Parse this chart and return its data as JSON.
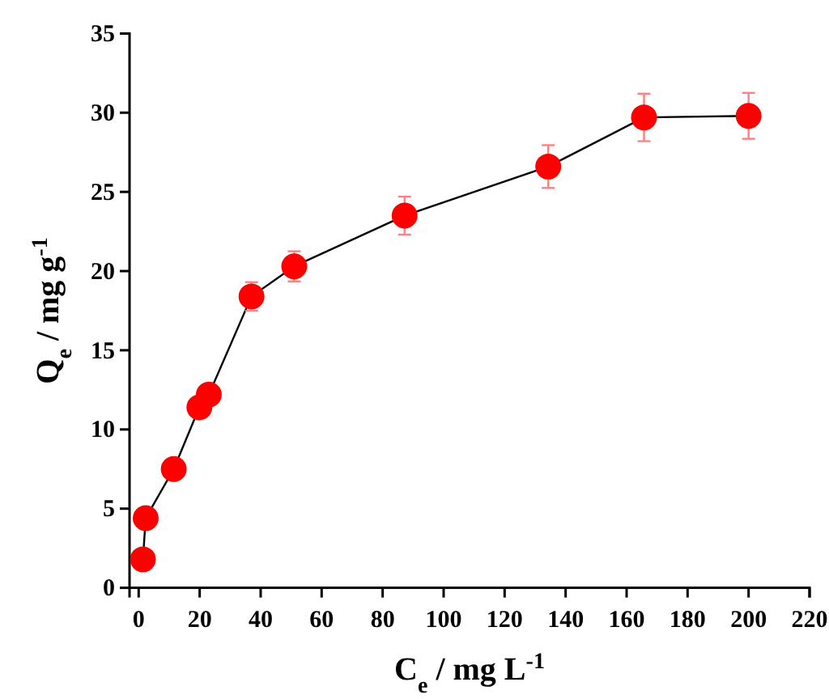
{
  "chart_data": {
    "type": "line",
    "xlabel": "C$_{e}$ / mg L$^{-1}$",
    "ylabel": "Q$_{e}$ / mg g$^{-1}$",
    "x": [
      1.4,
      2.3,
      11.5,
      19.9,
      23,
      37,
      51,
      87.2,
      134.3,
      165.7,
      200
    ],
    "series": [
      {
        "color": "#ff0000",
        "values": [
          1.8,
          4.4,
          7.5,
          11.4,
          12.2,
          18.4,
          20.3,
          23.5,
          26.6,
          29.7,
          29.8
        ],
        "errors": [
          null,
          null,
          null,
          null,
          null,
          0.9,
          0.95,
          1.2,
          1.35,
          1.5,
          1.45
        ]
      }
    ],
    "xlim": [
      -3,
      220
    ],
    "xticks": [
      0,
      20,
      40,
      60,
      80,
      100,
      120,
      140,
      160,
      180,
      200,
      220
    ],
    "ylim": [
      0,
      35
    ],
    "yticks": [
      0,
      5,
      10,
      15,
      20,
      25,
      30,
      35
    ],
    "grid": false,
    "marker": "circle",
    "line_style": "solid"
  }
}
